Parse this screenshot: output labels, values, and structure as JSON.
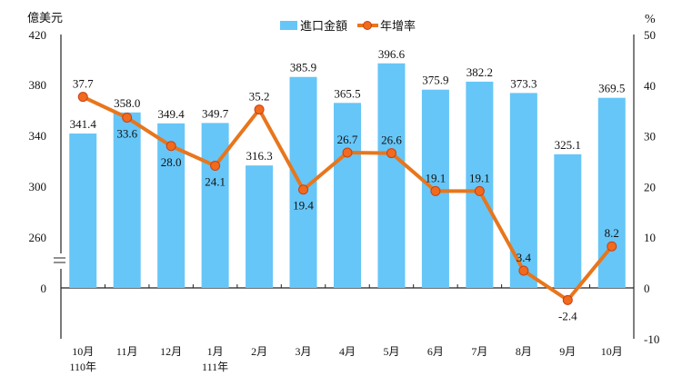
{
  "chart_data": {
    "type": "bar+line",
    "left_axis_unit": "億美元",
    "right_axis_unit": "%",
    "left_ticks": [
      "420",
      "380",
      "340",
      "300",
      "260",
      "0"
    ],
    "right_ticks": [
      "50",
      "40",
      "30",
      "20",
      "10",
      "0",
      "-10"
    ],
    "left_axis_broken": true,
    "ylim_left": [
      220,
      420
    ],
    "ylim_right": [
      -10,
      50
    ],
    "categories": [
      "10月",
      "11月",
      "12月",
      "1月",
      "2月",
      "3月",
      "4月",
      "5月",
      "6月",
      "7月",
      "8月",
      "9月",
      "10月"
    ],
    "category_sublabels": [
      "110年",
      "",
      "",
      "111年",
      "",
      "",
      "",
      "",
      "",
      "",
      "",
      "",
      ""
    ],
    "series": [
      {
        "name": "進口金額",
        "type": "bar",
        "axis": "left",
        "color": "#66c6f7",
        "values": [
          341.4,
          358.0,
          349.4,
          349.7,
          316.3,
          385.9,
          365.5,
          396.6,
          375.9,
          382.2,
          373.3,
          325.1,
          369.5
        ]
      },
      {
        "name": "年增率",
        "type": "line",
        "axis": "right",
        "color": "#e8761c",
        "marker_color": "#f26a1b",
        "values": [
          37.7,
          33.6,
          28.0,
          24.1,
          35.2,
          19.4,
          26.7,
          26.6,
          19.1,
          19.1,
          3.4,
          -2.4,
          8.2
        ]
      }
    ],
    "legend_placement": "top-center",
    "grid": false
  }
}
